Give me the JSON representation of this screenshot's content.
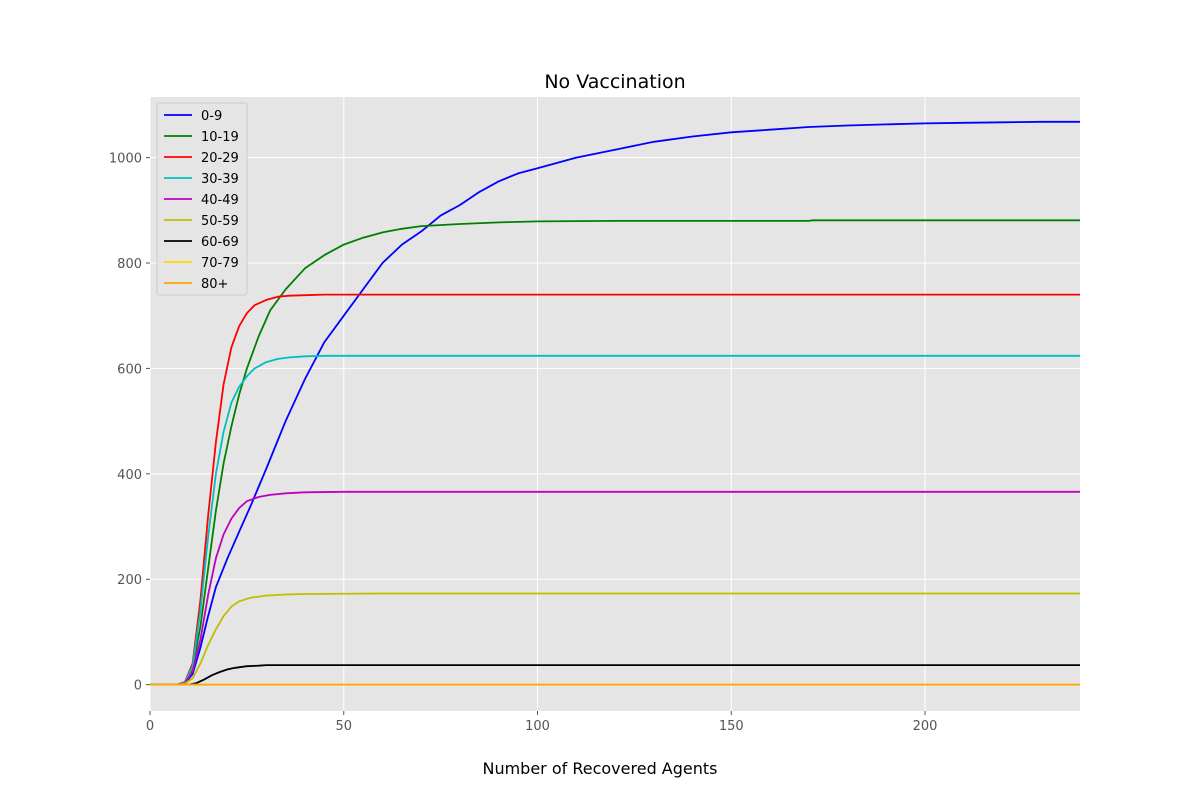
{
  "chart_data": {
    "type": "line",
    "title": "No Vaccination",
    "xlabel": "Number of Recovered Agents",
    "ylabel": "",
    "xlim": [
      0,
      240
    ],
    "ylim": [
      -50,
      1115
    ],
    "xticks": [
      0,
      50,
      100,
      150,
      200
    ],
    "yticks": [
      0,
      200,
      400,
      600,
      800,
      1000
    ],
    "grid": true,
    "legend_position": "top-left",
    "series": [
      {
        "name": "0-9",
        "color": "#0000ff",
        "points": [
          [
            0,
            0
          ],
          [
            7,
            0
          ],
          [
            9,
            2
          ],
          [
            11,
            20
          ],
          [
            13,
            70
          ],
          [
            15,
            130
          ],
          [
            17,
            185
          ],
          [
            20,
            240
          ],
          [
            23,
            290
          ],
          [
            26,
            340
          ],
          [
            30,
            410
          ],
          [
            35,
            500
          ],
          [
            40,
            580
          ],
          [
            45,
            650
          ],
          [
            50,
            700
          ],
          [
            55,
            750
          ],
          [
            60,
            800
          ],
          [
            65,
            835
          ],
          [
            70,
            860
          ],
          [
            75,
            890
          ],
          [
            80,
            910
          ],
          [
            85,
            935
          ],
          [
            90,
            955
          ],
          [
            95,
            970
          ],
          [
            100,
            980
          ],
          [
            110,
            1000
          ],
          [
            120,
            1015
          ],
          [
            130,
            1030
          ],
          [
            140,
            1040
          ],
          [
            150,
            1048
          ],
          [
            160,
            1053
          ],
          [
            170,
            1058
          ],
          [
            180,
            1061
          ],
          [
            190,
            1063
          ],
          [
            200,
            1065
          ],
          [
            210,
            1066
          ],
          [
            220,
            1067
          ],
          [
            230,
            1068
          ],
          [
            240,
            1068
          ]
        ]
      },
      {
        "name": "10-19",
        "color": "#008000",
        "points": [
          [
            0,
            0
          ],
          [
            7,
            0
          ],
          [
            9,
            3
          ],
          [
            11,
            30
          ],
          [
            13,
            110
          ],
          [
            15,
            220
          ],
          [
            17,
            330
          ],
          [
            19,
            420
          ],
          [
            21,
            490
          ],
          [
            23,
            550
          ],
          [
            25,
            600
          ],
          [
            28,
            660
          ],
          [
            31,
            710
          ],
          [
            35,
            750
          ],
          [
            40,
            790
          ],
          [
            45,
            815
          ],
          [
            50,
            835
          ],
          [
            55,
            848
          ],
          [
            60,
            858
          ],
          [
            65,
            865
          ],
          [
            70,
            870
          ],
          [
            80,
            874
          ],
          [
            90,
            877
          ],
          [
            100,
            879
          ],
          [
            120,
            880
          ],
          [
            150,
            880
          ],
          [
            170,
            880
          ],
          [
            171,
            881
          ],
          [
            200,
            881
          ],
          [
            240,
            881
          ]
        ]
      },
      {
        "name": "20-29",
        "color": "#ff0000",
        "points": [
          [
            0,
            0
          ],
          [
            7,
            0
          ],
          [
            9,
            5
          ],
          [
            11,
            40
          ],
          [
            13,
            160
          ],
          [
            15,
            320
          ],
          [
            17,
            460
          ],
          [
            19,
            570
          ],
          [
            21,
            640
          ],
          [
            23,
            680
          ],
          [
            25,
            705
          ],
          [
            27,
            720
          ],
          [
            30,
            730
          ],
          [
            33,
            736
          ],
          [
            36,
            738
          ],
          [
            40,
            739
          ],
          [
            45,
            740
          ],
          [
            60,
            740
          ],
          [
            100,
            740
          ],
          [
            240,
            740
          ]
        ]
      },
      {
        "name": "30-39",
        "color": "#00bfbf",
        "points": [
          [
            0,
            0
          ],
          [
            7,
            0
          ],
          [
            9,
            4
          ],
          [
            11,
            35
          ],
          [
            13,
            140
          ],
          [
            15,
            280
          ],
          [
            17,
            400
          ],
          [
            19,
            480
          ],
          [
            21,
            535
          ],
          [
            23,
            565
          ],
          [
            25,
            585
          ],
          [
            27,
            600
          ],
          [
            30,
            612
          ],
          [
            33,
            618
          ],
          [
            36,
            621
          ],
          [
            40,
            623
          ],
          [
            45,
            624
          ],
          [
            60,
            624
          ],
          [
            240,
            624
          ]
        ]
      },
      {
        "name": "40-49",
        "color": "#bf00bf",
        "points": [
          [
            0,
            0
          ],
          [
            7,
            0
          ],
          [
            9,
            3
          ],
          [
            11,
            25
          ],
          [
            13,
            85
          ],
          [
            15,
            170
          ],
          [
            17,
            240
          ],
          [
            19,
            285
          ],
          [
            21,
            315
          ],
          [
            23,
            335
          ],
          [
            25,
            348
          ],
          [
            28,
            356
          ],
          [
            31,
            360
          ],
          [
            35,
            363
          ],
          [
            40,
            365
          ],
          [
            50,
            366
          ],
          [
            240,
            366
          ]
        ]
      },
      {
        "name": "50-59",
        "color": "#bfbf00",
        "points": [
          [
            0,
            0
          ],
          [
            7,
            0
          ],
          [
            9,
            2
          ],
          [
            11,
            12
          ],
          [
            13,
            40
          ],
          [
            15,
            75
          ],
          [
            17,
            105
          ],
          [
            19,
            130
          ],
          [
            21,
            148
          ],
          [
            23,
            158
          ],
          [
            26,
            165
          ],
          [
            30,
            169
          ],
          [
            35,
            171
          ],
          [
            40,
            172
          ],
          [
            60,
            173
          ],
          [
            240,
            173
          ]
        ]
      },
      {
        "name": "60-69",
        "color": "#000000",
        "points": [
          [
            0,
            0
          ],
          [
            10,
            0
          ],
          [
            12,
            3
          ],
          [
            14,
            10
          ],
          [
            16,
            18
          ],
          [
            18,
            24
          ],
          [
            20,
            29
          ],
          [
            22,
            32
          ],
          [
            25,
            35
          ],
          [
            28,
            36
          ],
          [
            30,
            37
          ],
          [
            240,
            37
          ]
        ]
      },
      {
        "name": "70-79",
        "color": "#ffd700",
        "points": [
          [
            0,
            0
          ],
          [
            240,
            0
          ]
        ]
      },
      {
        "name": "80+",
        "color": "#ffa500",
        "points": [
          [
            0,
            0
          ],
          [
            240,
            0
          ]
        ]
      }
    ]
  }
}
